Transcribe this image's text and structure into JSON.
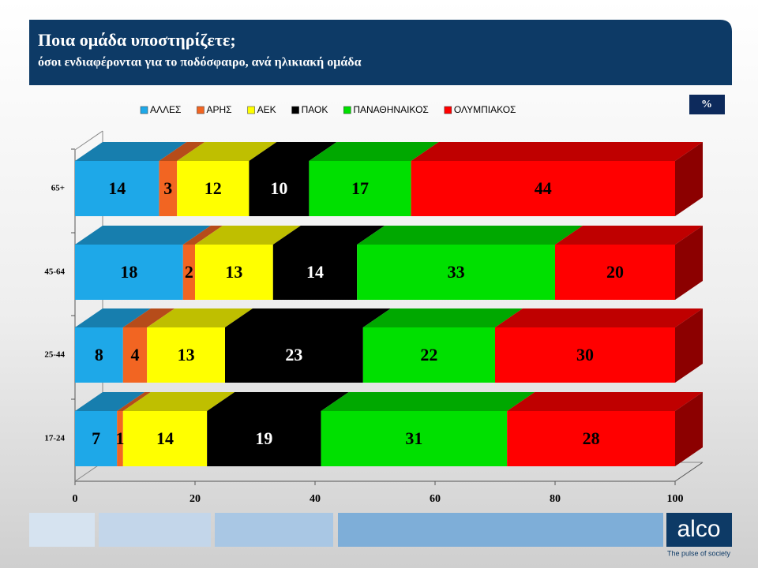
{
  "header": {
    "title": "Ποια ομάδα υποστηρίζετε;",
    "subtitle": "όσοι ενδιαφέρονται για το ποδόσφαιρο, ανά ηλικιακή ομάδα"
  },
  "unit_badge": "%",
  "brand": {
    "name": "alco",
    "tagline": "The pulse of society"
  },
  "chart_data": {
    "type": "stacked-bar-3d",
    "categories": [
      "65+",
      "45-64",
      "25-44",
      "17-24"
    ],
    "series": [
      {
        "name": "ΑΛΛΕΣ",
        "color": "#1ea8e8",
        "values": [
          14,
          18,
          8,
          7
        ]
      },
      {
        "name": "ΑΡΗΣ",
        "color": "#f26522",
        "values": [
          3,
          2,
          4,
          1
        ]
      },
      {
        "name": "ΑΕΚ",
        "color": "#ffff00",
        "values": [
          12,
          13,
          13,
          14
        ]
      },
      {
        "name": "ΠΑΟΚ",
        "color": "#000000",
        "values": [
          10,
          14,
          23,
          19
        ]
      },
      {
        "name": "ΠΑΝΑΘΗΝΑΙΚΟΣ",
        "color": "#00e000",
        "values": [
          17,
          33,
          22,
          31
        ]
      },
      {
        "name": "ΟΛΥΜΠΙΑΚΟΣ",
        "color": "#ff0000",
        "values": [
          44,
          20,
          30,
          28
        ]
      }
    ],
    "xlim": [
      0,
      100
    ],
    "xticks": [
      0,
      20,
      40,
      60,
      80,
      100
    ]
  }
}
